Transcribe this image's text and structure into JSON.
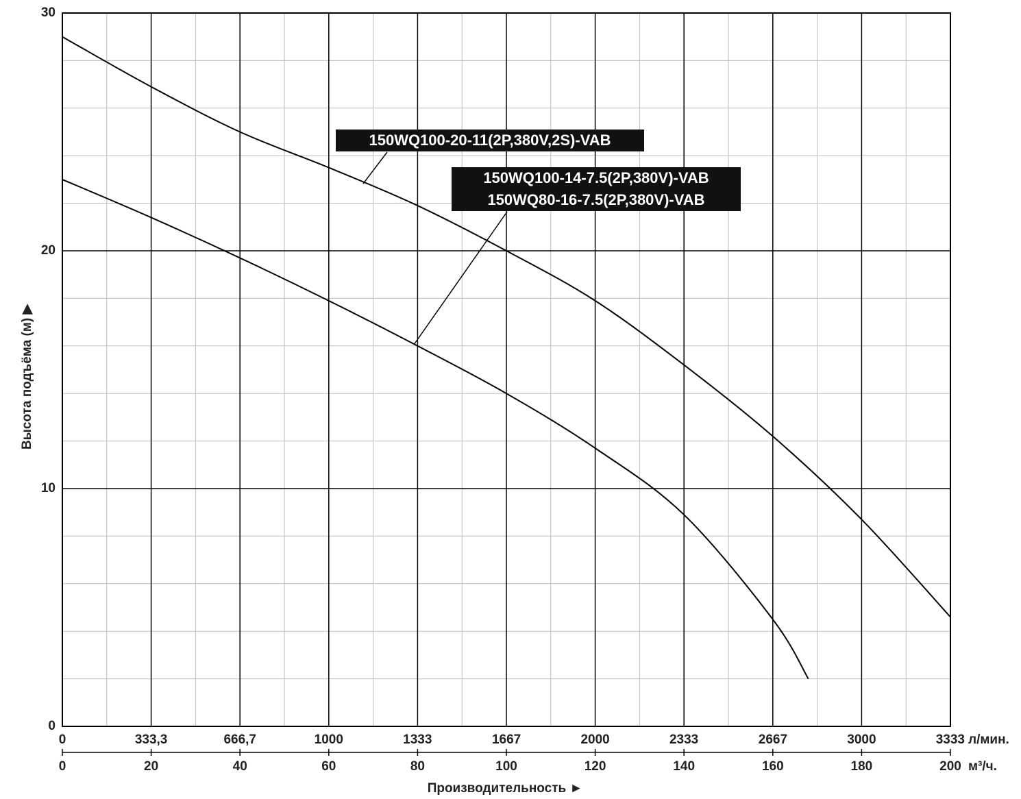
{
  "chart_data": {
    "type": "line",
    "xlabel": "Производительность ►",
    "ylabel": "Высота подъёма (м) ▶",
    "x_unit": "м³/ч.",
    "x2_unit": "л/мин.",
    "xlim": [
      0,
      200
    ],
    "xticks": [
      0,
      20,
      40,
      60,
      80,
      100,
      120,
      140,
      160,
      180,
      200
    ],
    "x_minor_ticks": [
      10,
      30,
      50,
      70,
      90,
      110,
      130,
      150,
      170,
      190
    ],
    "x2lim": [
      0,
      3333.3
    ],
    "x2ticks": [
      0,
      {
        "value": 333.3,
        "label": "333,3"
      },
      {
        "value": 666.7,
        "label": "666,7"
      },
      1000,
      1333,
      1667,
      2000,
      2333,
      2667,
      3000,
      3333
    ],
    "ylim": [
      0,
      30
    ],
    "yticks": [
      0,
      10,
      20,
      30
    ],
    "y_minor_ticks": [
      2,
      4,
      6,
      8,
      12,
      14,
      16,
      18,
      22,
      24,
      26,
      28
    ],
    "grid": true,
    "series": [
      {
        "names": [
          "150WQ100-20-11(2P,380V,2S)-VAB"
        ],
        "color": "#000000",
        "x": [
          0,
          20,
          40,
          60,
          80,
          100,
          120,
          140,
          160,
          180,
          200
        ],
        "values": [
          29.0,
          26.9,
          25.0,
          23.5,
          21.9,
          20.0,
          17.9,
          15.2,
          12.2,
          8.7,
          4.6
        ]
      },
      {
        "names": [
          "150WQ100-14-7.5(2P,380V)-VAB",
          "150WQ80-16-7.5(2P,380V)-VAB"
        ],
        "color": "#000000",
        "x": [
          0,
          20,
          40,
          60,
          80,
          100,
          120,
          140,
          160,
          168
        ],
        "values": [
          23.0,
          21.4,
          19.7,
          17.9,
          16.0,
          14.0,
          11.7,
          8.9,
          4.5,
          2.0
        ]
      }
    ]
  }
}
